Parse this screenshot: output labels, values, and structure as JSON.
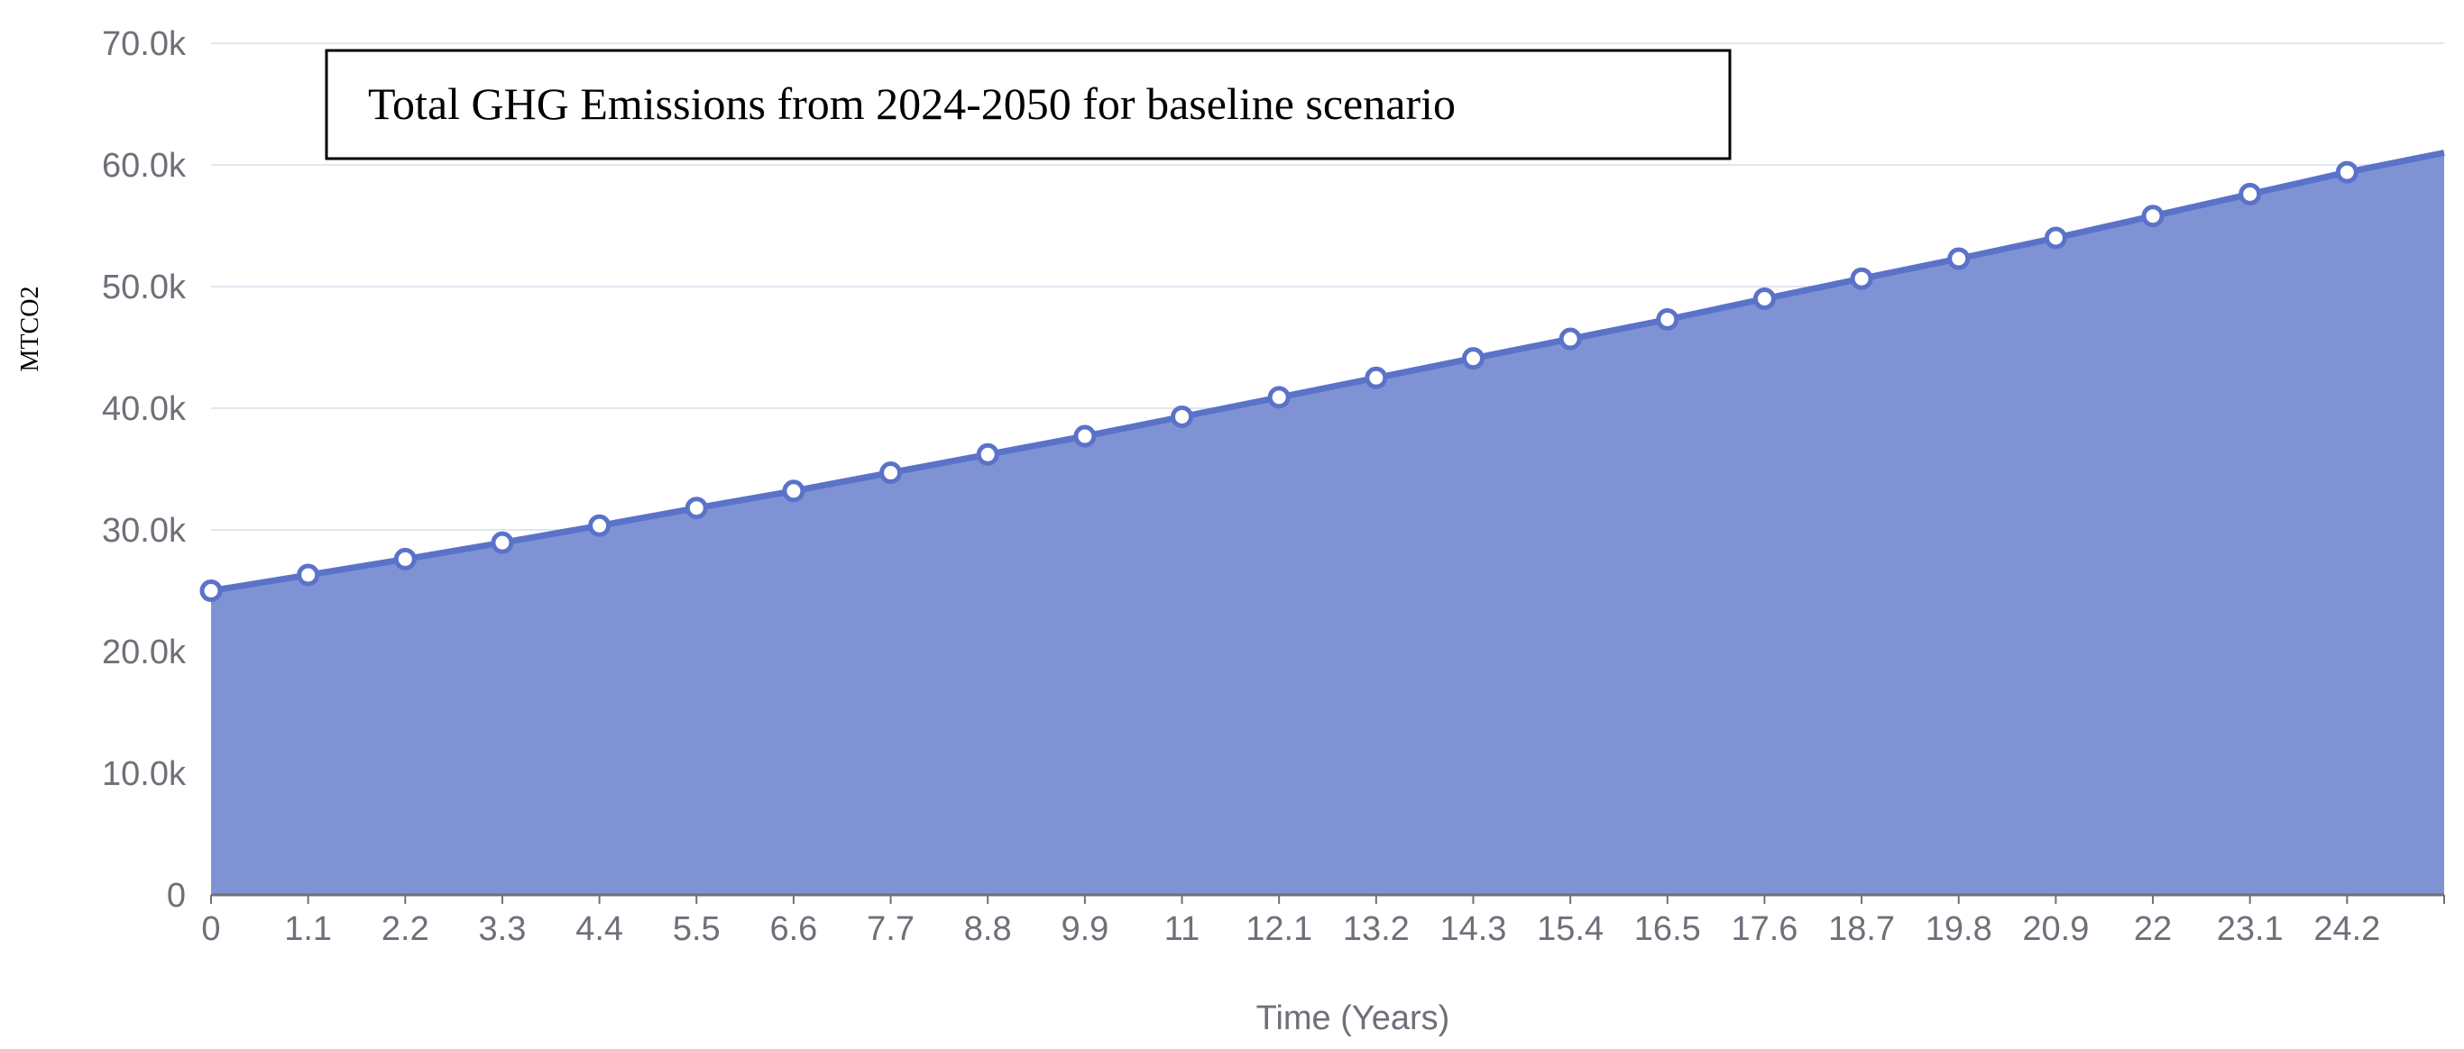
{
  "chart_data": {
    "type": "area",
    "title": "Total GHG Emissions from 2024-2050 for baseline scenario",
    "xlabel": "Time (Years)",
    "ylabel": "MTCO2",
    "ylim": [
      0,
      70000
    ],
    "y_ticks": [
      {
        "value": 0,
        "label": "0"
      },
      {
        "value": 10000,
        "label": "10.0k"
      },
      {
        "value": 20000,
        "label": "20.0k"
      },
      {
        "value": 30000,
        "label": "30.0k"
      },
      {
        "value": 40000,
        "label": "40.0k"
      },
      {
        "value": 50000,
        "label": "50.0k"
      },
      {
        "value": 60000,
        "label": "60.0k"
      },
      {
        "value": 70000,
        "label": "70.0k"
      }
    ],
    "x_tick_labels": [
      "0",
      "1.1",
      "2.2",
      "3.3",
      "4.4",
      "5.5",
      "6.6",
      "7.7",
      "8.8",
      "9.9",
      "11",
      "12.1",
      "13.2",
      "14.3",
      "15.4",
      "16.5",
      "17.6",
      "18.7",
      "19.8",
      "20.9",
      "22",
      "23.1",
      "24.2"
    ],
    "x_max": 25.3,
    "grid": true,
    "series": [
      {
        "x": [
          0,
          1.1,
          2.2,
          3.3,
          4.4,
          5.5,
          6.6,
          7.7,
          8.8,
          9.9,
          11,
          12.1,
          13.2,
          14.3,
          15.4,
          16.5,
          17.6,
          18.7,
          19.8,
          20.9,
          22,
          23.1,
          24.2
        ],
        "values": [
          25000,
          26300,
          27600,
          28950,
          30350,
          31800,
          33200,
          34700,
          36200,
          37700,
          39300,
          40900,
          42500,
          44100,
          45700,
          47300,
          49000,
          50650,
          52300,
          54000,
          55800,
          57600,
          59400
        ],
        "end_value": 61000
      }
    ],
    "colors": {
      "area_fill": "#7f92d4",
      "line": "#5b72c9",
      "marker_fill": "#ffffff",
      "grid": "#e0e6f1",
      "axis": "#6e7079"
    }
  }
}
